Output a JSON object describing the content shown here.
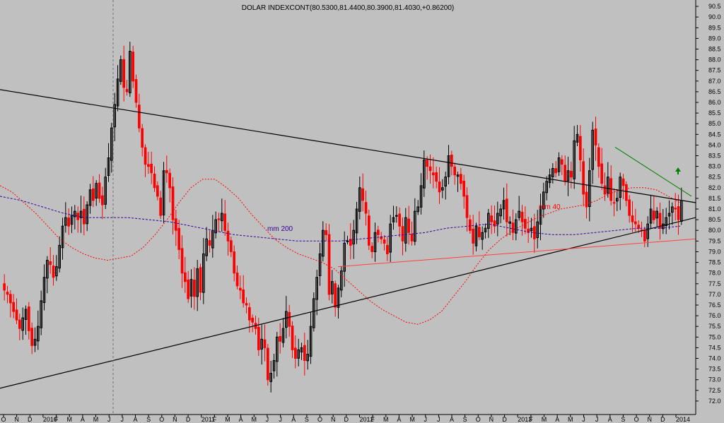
{
  "chart_data": {
    "type": "candlestick",
    "title": "DOLAR INDEXCONT(80.5300,81.4400,80.3900,81.4030,+0.86200)",
    "ylim": [
      71.6,
      90.7
    ],
    "y_ticks": [
      72.0,
      72.5,
      73.0,
      73.5,
      74.0,
      74.5,
      75.0,
      75.5,
      76.0,
      76.5,
      77.0,
      77.5,
      78.0,
      78.5,
      79.0,
      79.5,
      80.0,
      80.5,
      81.0,
      81.5,
      82.0,
      82.5,
      83.0,
      83.5,
      84.0,
      84.5,
      85.0,
      85.5,
      86.0,
      86.5,
      87.0,
      87.5,
      88.0,
      88.5,
      89.0,
      89.5,
      90.0,
      90.5
    ],
    "x_labels": [
      "O",
      "N",
      "D",
      "2010",
      "F",
      "M",
      "A",
      "M",
      "J",
      "J",
      "A",
      "S",
      "O",
      "N",
      "D",
      "2011",
      "F",
      "M",
      "A",
      "M",
      "J",
      "J",
      "A",
      "S",
      "O",
      "N",
      "D",
      "2012",
      "F",
      "M",
      "A",
      "M",
      "J",
      "J",
      "A",
      "S",
      "O",
      "N",
      "D",
      "2013",
      "F",
      "M",
      "A",
      "M",
      "J",
      "J",
      "A",
      "S",
      "O",
      "N",
      "D",
      "2014"
    ],
    "grid": false,
    "colors": {
      "background": "#c0c0c0",
      "up_candle": "#000000",
      "down_candle": "#ff0000",
      "mm40": "#ff0000",
      "mm200": "#330099",
      "channel": "#000000",
      "support": "#ff4040",
      "trendline": "#008000",
      "arrow": "#008000"
    },
    "weekly_close": [
      77.2,
      77.0,
      76.6,
      76.2,
      75.8,
      75.4,
      75.9,
      76.3,
      75.3,
      74.6,
      74.9,
      75.5,
      76.7,
      77.8,
      78.6,
      78.4,
      77.8,
      78.3,
      79.3,
      80.2,
      80.6,
      80.2,
      80.7,
      80.9,
      80.5,
      80.9,
      80.3,
      81.2,
      81.9,
      81.4,
      82.2,
      81.5,
      81.2,
      82.5,
      83.4,
      84.8,
      85.9,
      87.1,
      88.0,
      86.7,
      86.5,
      88.4,
      87.0,
      86.0,
      84.8,
      83.9,
      83.1,
      83.0,
      82.7,
      82.0,
      81.6,
      80.7,
      82.8,
      82.7,
      82.0,
      80.5,
      80.0,
      79.1,
      78.0,
      77.6,
      76.8,
      77.7,
      76.9,
      78.2,
      77.1,
      78.9,
      79.6,
      79.3,
      80.0,
      80.5,
      80.5,
      80.8,
      80.0,
      79.5,
      79.0,
      78.0,
      77.4,
      77.2,
      76.6,
      76.5,
      75.8,
      75.7,
      75.4,
      74.4,
      74.9,
      74.5,
      73.0,
      73.3,
      73.9,
      75.0,
      74.8,
      75.4,
      76.2,
      75.5,
      74.4,
      74.0,
      74.4,
      74.5,
      73.9,
      74.2,
      75.5,
      76.8,
      77.8,
      78.9,
      80.0,
      79.8,
      77.0,
      77.6,
      76.4,
      77.3,
      78.1,
      79.4,
      79.5,
      79.3,
      80.0,
      81.0,
      82.0,
      81.4,
      80.8,
      79.3,
      79.0,
      79.9,
      79.8,
      79.6,
      79.4,
      78.9,
      80.3,
      80.6,
      80.7,
      80.2,
      79.5,
      80.6,
      79.9,
      79.5,
      80.9,
      81.1,
      82.1,
      83.3,
      83.0,
      82.8,
      82.6,
      82.3,
      81.8,
      82.0,
      82.5,
      83.5,
      83.0,
      82.6,
      82.6,
      82.2,
      81.6,
      80.6,
      80.0,
      79.4,
      80.2,
      79.7,
      79.9,
      80.1,
      80.8,
      80.4,
      80.2,
      80.8,
      81.0,
      81.4,
      80.4,
      80.4,
      79.9,
      80.5,
      80.9,
      80.4,
      80.1,
      79.9,
      80.1,
      79.6,
      80.4,
      81.1,
      81.8,
      82.3,
      82.6,
      82.9,
      82.7,
      83.4,
      83.1,
      82.3,
      82.8,
      82.5,
      84.2,
      84.5,
      83.3,
      81.7,
      81.1,
      82.8,
      84.7,
      84.0,
      83.0,
      82.2,
      81.7,
      82.5,
      81.4,
      81.3,
      81.5,
      82.5,
      82.1,
      81.4,
      80.7,
      80.4,
      80.3,
      80.1,
      80.0,
      79.5,
      80.3,
      81.0,
      80.5,
      80.9,
      80.1,
      80.3,
      80.6,
      80.8,
      81.1,
      81.0,
      80.5,
      81.4
    ],
    "mm40": [
      82.1,
      81.8,
      81.3,
      80.8,
      80.2,
      79.6,
      79.2,
      78.9,
      78.7,
      78.6,
      78.7,
      78.8,
      79.2,
      79.8,
      80.5,
      81.3,
      82.0,
      82.4,
      82.4,
      82.0,
      81.5,
      80.8,
      80.2,
      79.6,
      79.2,
      78.9,
      78.7,
      78.5,
      78.2,
      77.7,
      77.2,
      76.7,
      76.3,
      76.0,
      75.7,
      75.6,
      75.8,
      76.2,
      76.9,
      77.6,
      78.4,
      79.1,
      79.6,
      80.0,
      80.3,
      80.6,
      80.8,
      81.0,
      81.1,
      81.2,
      81.4,
      81.7,
      81.9,
      82.0,
      82.0,
      81.9,
      81.6,
      81.3
    ],
    "mm200": [
      81.6,
      81.4,
      81.1,
      80.8,
      80.6,
      80.6,
      80.6,
      80.5,
      80.4,
      80.2,
      80.0,
      79.8,
      79.7,
      79.6,
      79.5,
      79.5,
      79.5,
      79.6,
      79.7,
      79.8,
      79.9,
      80.1,
      80.2,
      80.3,
      80.1,
      79.9,
      79.8,
      79.8,
      79.9,
      80.0,
      80.1,
      80.1,
      80.2
    ],
    "channel_upper": {
      "start": 86.6,
      "end": 81.3
    },
    "channel_lower": {
      "start": 72.6,
      "end": 80.6
    },
    "support_line": {
      "start": 78.3,
      "end": 79.6
    },
    "trendline": {
      "start": 83.9,
      "end": 81.6
    },
    "annotations": {
      "mm200": "mm 200",
      "mm40": "mm 40"
    }
  }
}
